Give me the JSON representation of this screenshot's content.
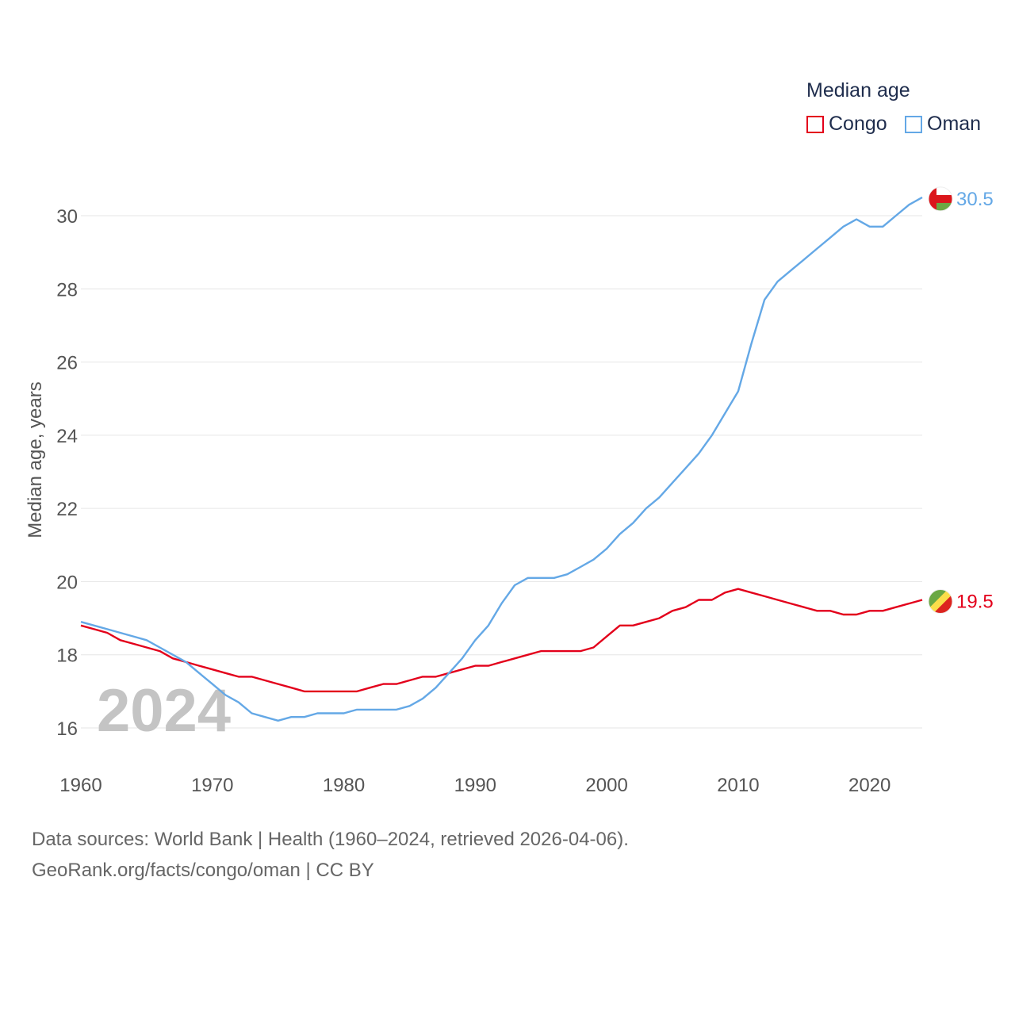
{
  "legend": {
    "title": "Median age",
    "items": [
      {
        "label": "Congo",
        "color": "#e3001b"
      },
      {
        "label": "Oman",
        "color": "#64a8e6"
      }
    ]
  },
  "footer": {
    "source": "Data sources: World Bank | Health (1960–2024, retrieved 2026-04-06).",
    "credit": "GeoRank.org/facts/congo/oman | CC BY"
  },
  "chart_data": {
    "type": "line",
    "title": "Median age",
    "xlabel": "",
    "ylabel": "Median age, years",
    "watermark": "2024",
    "xlim": [
      1960,
      2024
    ],
    "ylim": [
      15,
      31
    ],
    "yticks": [
      16,
      18,
      20,
      22,
      24,
      26,
      28,
      30
    ],
    "xticks": [
      1960,
      1970,
      1980,
      1990,
      2000,
      2010,
      2020
    ],
    "grid": true,
    "legend_position": "top-right",
    "x": [
      1960,
      1961,
      1962,
      1963,
      1964,
      1965,
      1966,
      1967,
      1968,
      1969,
      1970,
      1971,
      1972,
      1973,
      1974,
      1975,
      1976,
      1977,
      1978,
      1979,
      1980,
      1981,
      1982,
      1983,
      1984,
      1985,
      1986,
      1987,
      1988,
      1989,
      1990,
      1991,
      1992,
      1993,
      1994,
      1995,
      1996,
      1997,
      1998,
      1999,
      2000,
      2001,
      2002,
      2003,
      2004,
      2005,
      2006,
      2007,
      2008,
      2009,
      2010,
      2011,
      2012,
      2013,
      2014,
      2015,
      2016,
      2017,
      2018,
      2019,
      2020,
      2021,
      2022,
      2023,
      2024
    ],
    "series": [
      {
        "name": "Congo",
        "color": "#e3001b",
        "end_label": "19.5",
        "flag": "congo-flag",
        "values": [
          18.8,
          18.7,
          18.6,
          18.4,
          18.3,
          18.2,
          18.1,
          17.9,
          17.8,
          17.7,
          17.6,
          17.5,
          17.4,
          17.4,
          17.3,
          17.2,
          17.1,
          17.0,
          17.0,
          17.0,
          17.0,
          17.0,
          17.1,
          17.2,
          17.2,
          17.3,
          17.4,
          17.4,
          17.5,
          17.6,
          17.7,
          17.7,
          17.8,
          17.9,
          18.0,
          18.1,
          18.1,
          18.1,
          18.1,
          18.2,
          18.5,
          18.8,
          18.8,
          18.9,
          19.0,
          19.2,
          19.3,
          19.5,
          19.5,
          19.7,
          19.8,
          19.7,
          19.6,
          19.5,
          19.4,
          19.3,
          19.2,
          19.2,
          19.1,
          19.1,
          19.2,
          19.2,
          19.3,
          19.4,
          19.5
        ]
      },
      {
        "name": "Oman",
        "color": "#64a8e6",
        "end_label": "30.5",
        "flag": "oman-flag",
        "values": [
          18.9,
          18.8,
          18.7,
          18.6,
          18.5,
          18.4,
          18.2,
          18.0,
          17.8,
          17.5,
          17.2,
          16.9,
          16.7,
          16.4,
          16.3,
          16.2,
          16.3,
          16.3,
          16.4,
          16.4,
          16.4,
          16.5,
          16.5,
          16.5,
          16.5,
          16.6,
          16.8,
          17.1,
          17.5,
          17.9,
          18.4,
          18.8,
          19.4,
          19.9,
          20.1,
          20.1,
          20.1,
          20.2,
          20.4,
          20.6,
          20.9,
          21.3,
          21.6,
          22.0,
          22.3,
          22.7,
          23.1,
          23.5,
          24.0,
          24.6,
          25.2,
          26.5,
          27.7,
          28.2,
          28.5,
          28.8,
          29.1,
          29.4,
          29.7,
          29.9,
          29.7,
          29.7,
          30.0,
          30.3,
          30.5
        ]
      }
    ]
  }
}
